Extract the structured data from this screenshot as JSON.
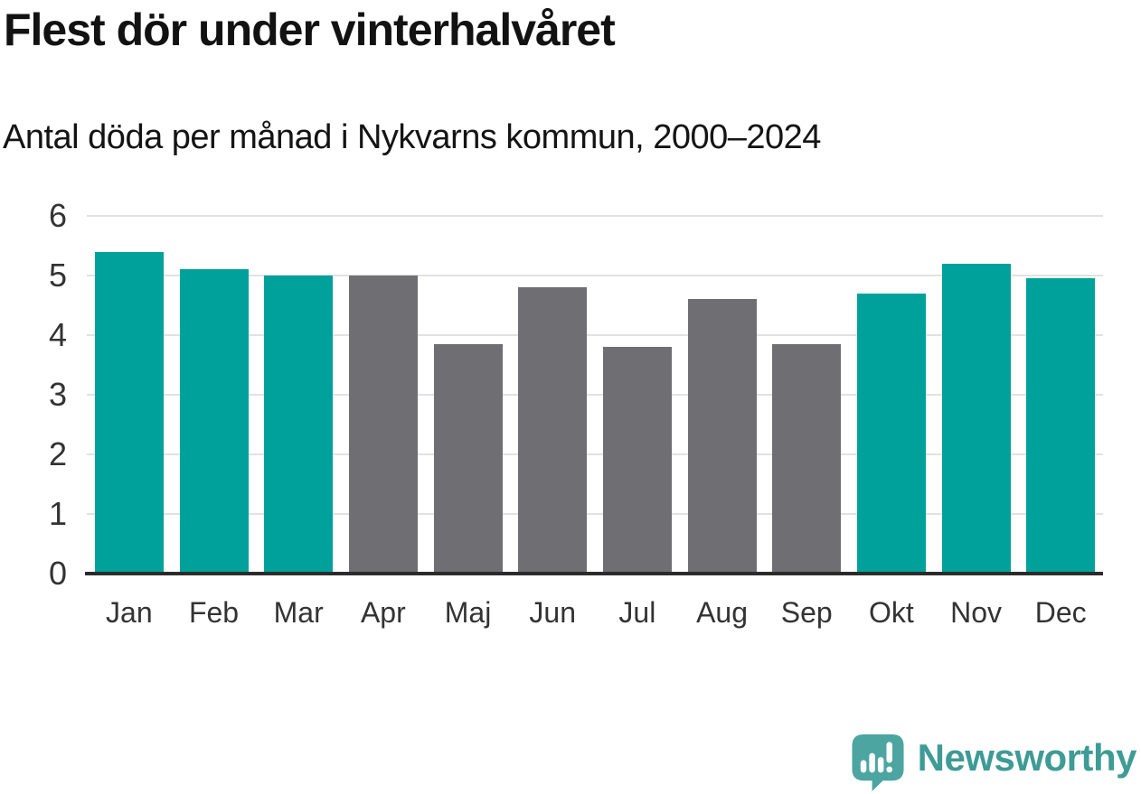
{
  "header": {
    "title": "Flest dör under vinterhalvåret",
    "subtitle": "Antal döda per månad i Nykvarns kommun, 2000–2024"
  },
  "chart_data": {
    "type": "bar",
    "title": "Flest dör under vinterhalvåret",
    "subtitle": "Antal döda per månad i Nykvarns kommun, 2000–2024",
    "categories": [
      "Jan",
      "Feb",
      "Mar",
      "Apr",
      "Maj",
      "Jun",
      "Jul",
      "Aug",
      "Sep",
      "Okt",
      "Nov",
      "Dec"
    ],
    "values": [
      5.4,
      5.1,
      5.0,
      5.0,
      3.85,
      4.8,
      3.8,
      4.6,
      3.85,
      4.7,
      5.2,
      4.95
    ],
    "bar_seasons": [
      "winter",
      "winter",
      "winter",
      "summer",
      "summer",
      "summer",
      "summer",
      "summer",
      "summer",
      "winter",
      "winter",
      "winter"
    ],
    "palette": {
      "winter": "#00A19A",
      "summer": "#6E6E73"
    },
    "xlabel": "",
    "ylabel": "",
    "ylim": [
      0,
      6
    ],
    "yticks": [
      0,
      1,
      2,
      3,
      4,
      5,
      6
    ],
    "grid": "horizontal",
    "legend": "none"
  },
  "colors": {
    "axis_text": "#333333",
    "gridline": "#E2E2E2",
    "baseline": "#2B2B2B",
    "background": "#FFFFFF"
  },
  "footer": {
    "brand_name": "Newsworthy",
    "brand_text_color": "#3E9B95",
    "logo_icon": "newsworthy-speech-bubble-chart-icon",
    "logo_color": "#4CA5A0"
  }
}
